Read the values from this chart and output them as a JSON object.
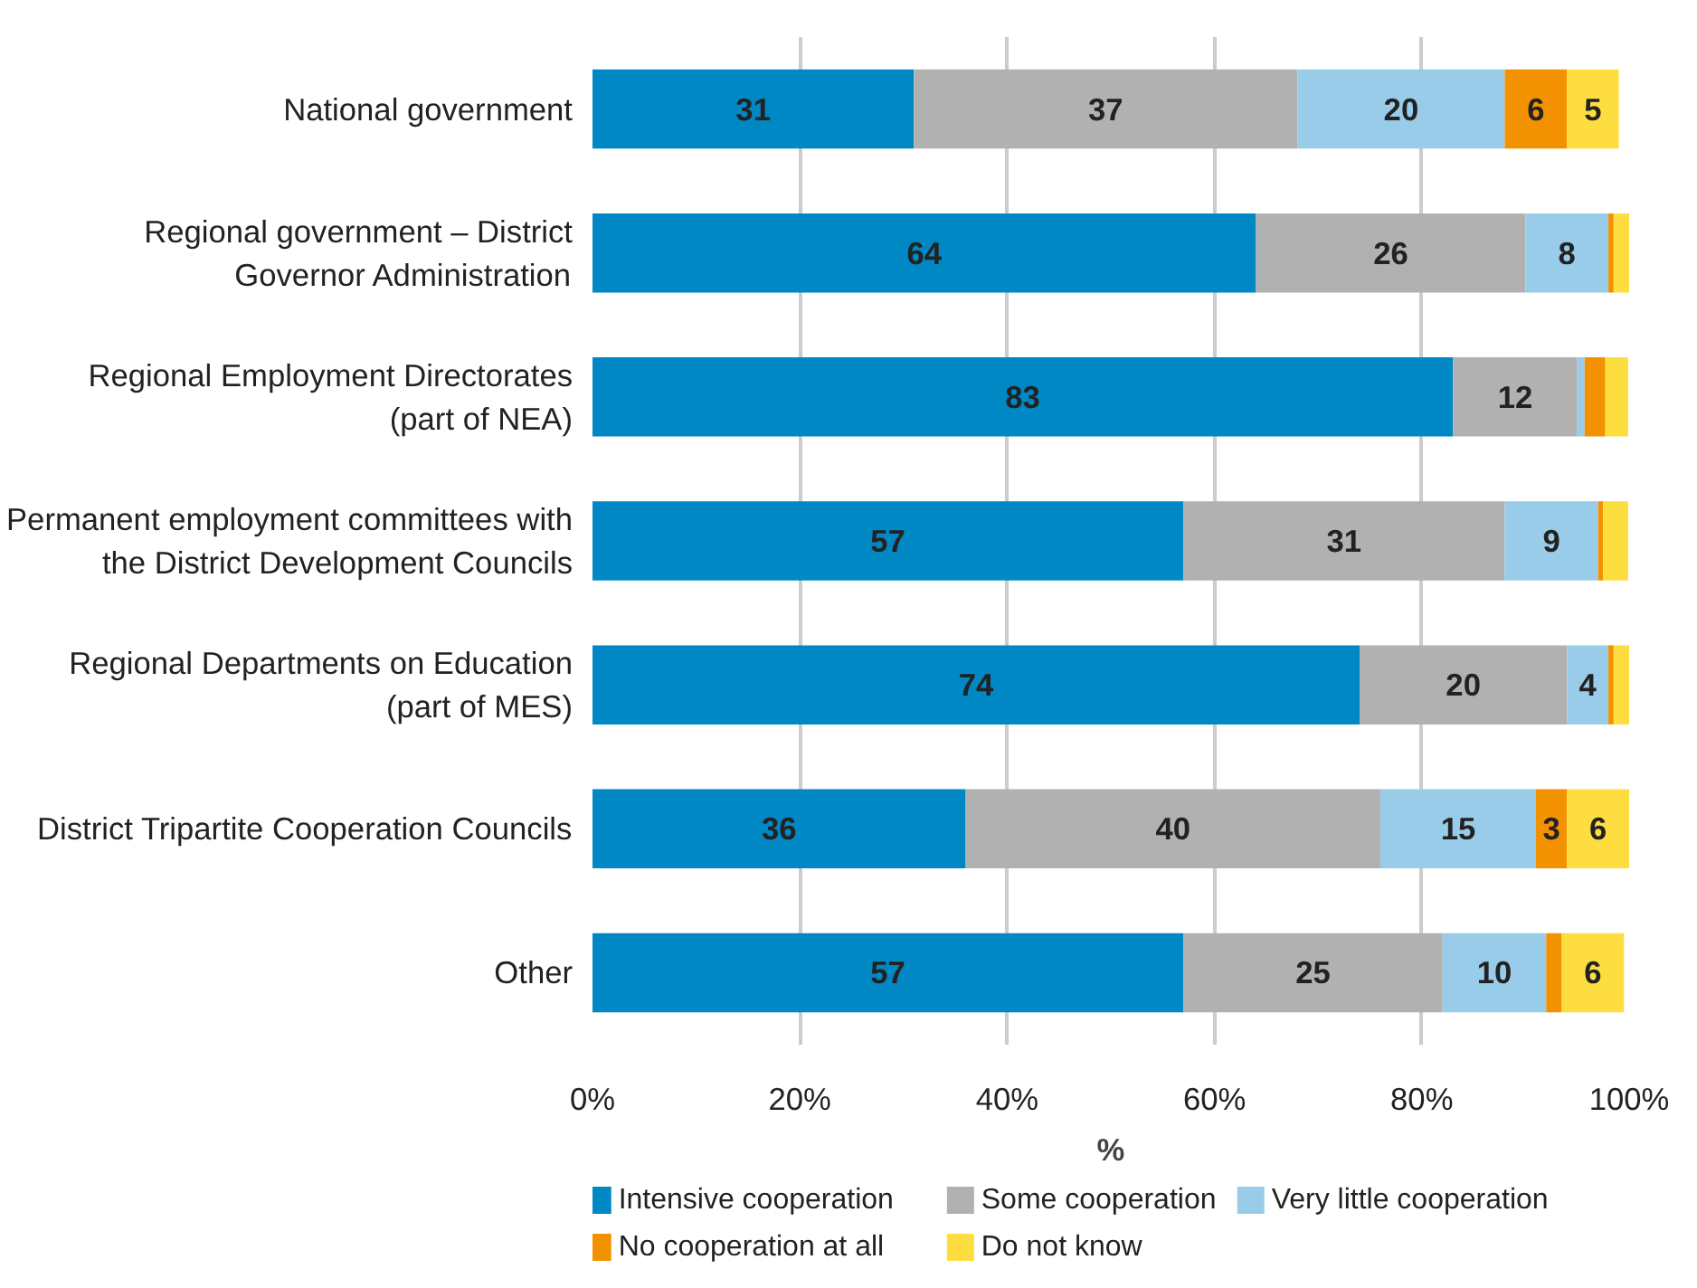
{
  "chart_data": {
    "type": "bar",
    "orientation": "horizontal",
    "stacked": true,
    "xlabel": "%",
    "categories": [
      "National government",
      "Regional government – District\nGovernor Administration",
      "Regional Employment Directorates\n(part of NEA)",
      "Permanent employment committees with\nthe District Development Councils",
      "Regional Departments on Education\n(part of MES)",
      "District Tripartite Cooperation Councils",
      "Other"
    ],
    "series": [
      {
        "name": "Intensive cooperation",
        "color": "#0088c4",
        "values": [
          31,
          64,
          83,
          57,
          74,
          36,
          57
        ],
        "value_labels": [
          "31",
          "64",
          "83",
          "57",
          "74",
          "36",
          "57"
        ]
      },
      {
        "name": "Some cooperation",
        "color": "#b1b1b1",
        "values": [
          37,
          26,
          12,
          31,
          20,
          40,
          25
        ],
        "value_labels": [
          "37",
          "26",
          "12",
          "31",
          "20",
          "40",
          "25"
        ]
      },
      {
        "name": "Very little cooperation",
        "color": "#99cce8",
        "values": [
          20,
          8,
          0.7,
          9,
          4,
          15,
          10
        ],
        "value_labels": [
          "20",
          "8",
          null,
          "9",
          "4",
          "15",
          "10"
        ]
      },
      {
        "name": "No cooperation at all",
        "color": "#f39200",
        "values": [
          6,
          0.5,
          2,
          0.5,
          0.5,
          3,
          1.5
        ],
        "value_labels": [
          "6",
          null,
          null,
          null,
          null,
          "3",
          null
        ]
      },
      {
        "name": "Do not know",
        "color": "#fddd3f",
        "values": [
          5,
          1.5,
          2.2,
          2.4,
          1.5,
          6,
          6
        ],
        "value_labels": [
          "5",
          null,
          null,
          null,
          null,
          "6",
          "6"
        ]
      }
    ],
    "xlim": [
      0,
      100
    ],
    "xticks": [
      {
        "value": 0,
        "label": "0%"
      },
      {
        "value": 20,
        "label": "20%"
      },
      {
        "value": 40,
        "label": "40%"
      },
      {
        "value": 60,
        "label": "60%"
      },
      {
        "value": 80,
        "label": "80%"
      },
      {
        "value": 100,
        "label": "100%"
      }
    ],
    "grid": "x",
    "legend": "bottom"
  }
}
